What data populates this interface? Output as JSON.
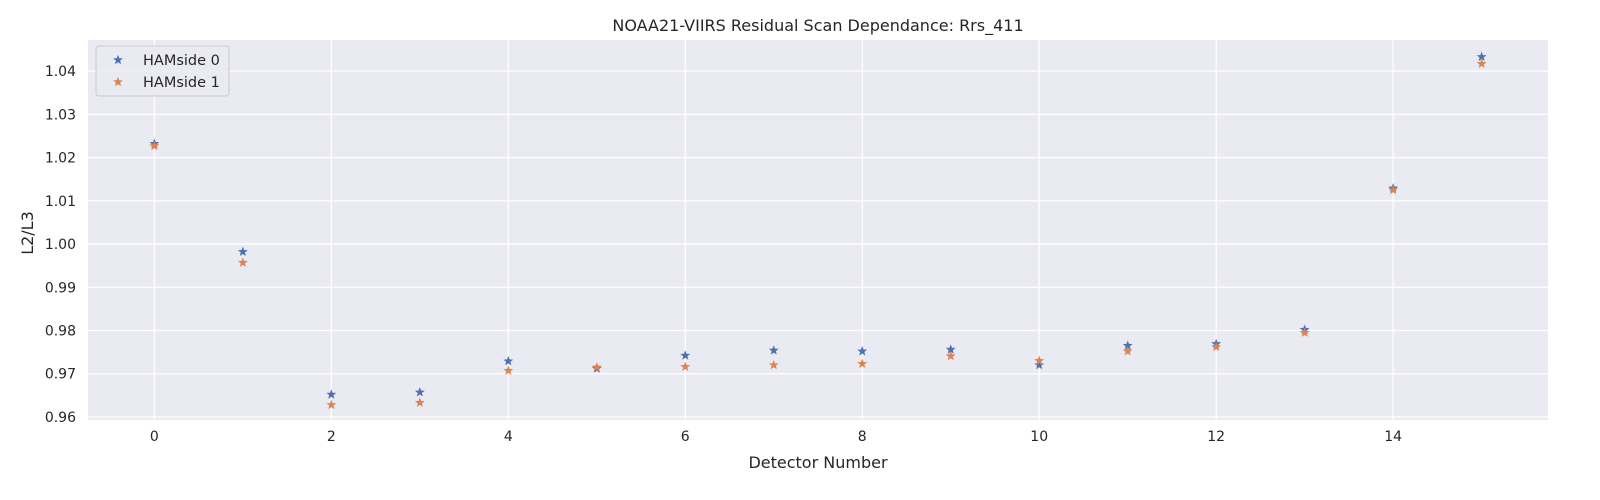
{
  "chart_data": {
    "type": "scatter",
    "title": "NOAA21-VIIRS Residual Scan Dependance: Rrs_411",
    "xlabel": "Detector Number",
    "ylabel": "L2/L3",
    "x": [
      0,
      1,
      2,
      3,
      4,
      5,
      6,
      7,
      8,
      9,
      10,
      11,
      12,
      13,
      14,
      15
    ],
    "series": [
      {
        "name": "HAMside 0",
        "color": "#4c72b0",
        "marker": "star",
        "values": [
          1.0232,
          0.9982,
          0.9652,
          0.9657,
          0.9729,
          0.9712,
          0.9742,
          0.9754,
          0.9752,
          0.9756,
          0.972,
          0.9765,
          0.9769,
          0.9802,
          1.0129,
          1.0433
        ]
      },
      {
        "name": "HAMside 1",
        "color": "#dd8452",
        "marker": "star",
        "values": [
          1.0227,
          0.9957,
          0.9628,
          0.9633,
          0.9707,
          0.9715,
          0.9716,
          0.972,
          0.9723,
          0.9741,
          0.973,
          0.9752,
          0.9762,
          0.9795,
          1.0125,
          1.0417
        ]
      }
    ],
    "xlim": [
      -0.75,
      15.75
    ],
    "ylim": [
      0.9593,
      1.0472
    ],
    "xticks": [
      0,
      2,
      4,
      6,
      8,
      10,
      12,
      14
    ],
    "yticks": [
      0.96,
      0.97,
      0.98,
      0.99,
      1.0,
      1.01,
      1.02,
      1.03,
      1.04
    ],
    "xtick_labels": [
      "0",
      "2",
      "4",
      "6",
      "8",
      "10",
      "12",
      "14"
    ],
    "ytick_labels": [
      "0.96",
      "0.97",
      "0.98",
      "0.99",
      "1.00",
      "1.01",
      "1.02",
      "1.03",
      "1.04"
    ],
    "grid": true,
    "legend_position": "top-left",
    "background_color": "#eaeaf2",
    "grid_color": "#ffffff"
  }
}
